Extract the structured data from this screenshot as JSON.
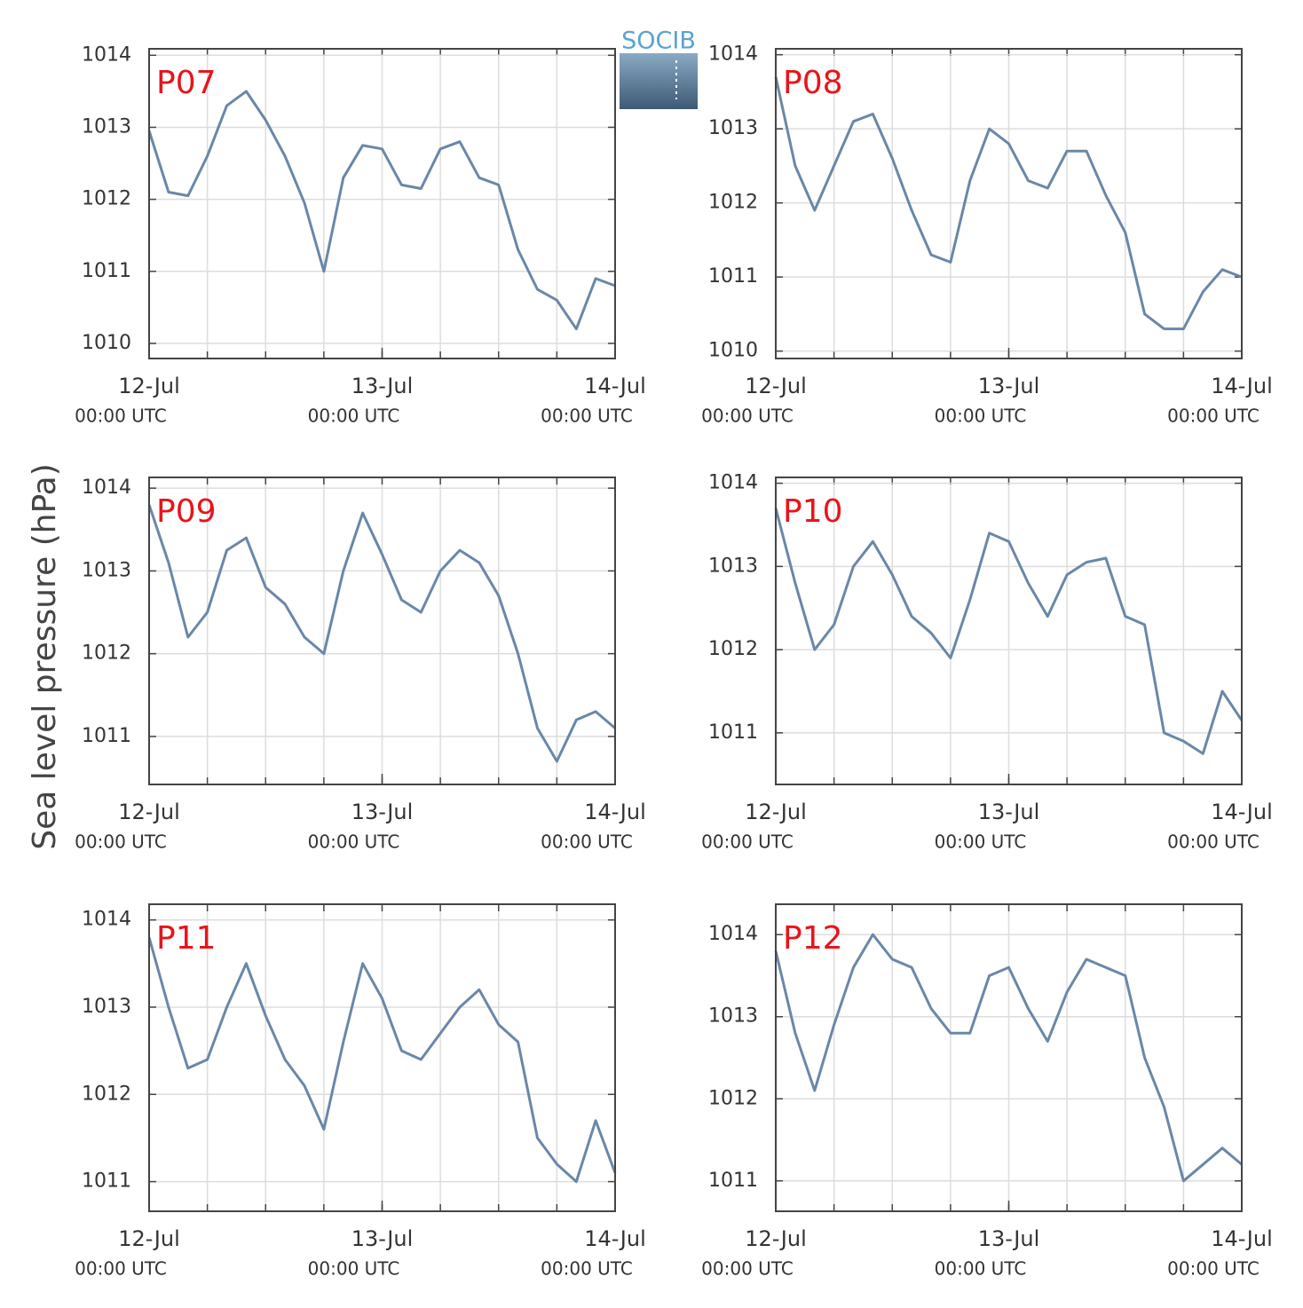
{
  "logo": "SOCIB",
  "ylabel": "Sea level pressure (hPa)",
  "chart_data": [
    {
      "type": "line",
      "title": "P07",
      "color": "#6a87a8",
      "x": [
        "12-Jul 00:00",
        "12-Jul 02:00",
        "12-Jul 04:00",
        "12-Jul 06:00",
        "12-Jul 08:00",
        "12-Jul 10:00",
        "12-Jul 12:00",
        "12-Jul 14:00",
        "12-Jul 16:00",
        "12-Jul 18:00",
        "12-Jul 20:00",
        "12-Jul 22:00",
        "13-Jul 00:00",
        "13-Jul 02:00",
        "13-Jul 04:00",
        "13-Jul 06:00",
        "13-Jul 08:00",
        "13-Jul 10:00",
        "13-Jul 12:00",
        "13-Jul 14:00",
        "13-Jul 16:00",
        "13-Jul 18:00",
        "13-Jul 20:00",
        "13-Jul 22:00",
        "14-Jul 00:00"
      ],
      "values": [
        1012.95,
        1012.1,
        1012.05,
        1012.6,
        1013.3,
        1013.5,
        1013.1,
        1012.6,
        1011.95,
        1011.0,
        1012.3,
        1012.75,
        1012.7,
        1012.2,
        1012.15,
        1012.7,
        1012.8,
        1012.3,
        1012.2,
        1011.3,
        1010.75,
        1010.6,
        1010.2,
        1010.9,
        1010.8
      ],
      "ylim": [
        1009.79,
        1014.09
      ],
      "yticks": [
        1010,
        1011,
        1012,
        1013,
        1014
      ],
      "xticks": [
        {
          "value": "12-Jul 00:00",
          "label": "12-Jul",
          "time": "00:00 UTC"
        },
        {
          "value": "13-Jul 00:00",
          "label": "13-Jul",
          "time": "00:00 UTC"
        },
        {
          "value": "14-Jul 00:00",
          "label": "14-Jul",
          "time": "00:00 UTC"
        }
      ],
      "xminorticks": [
        "12-Jul 00:00",
        "12-Jul 06:00",
        "12-Jul 12:00",
        "12-Jul 18:00",
        "13-Jul 00:00",
        "13-Jul 06:00",
        "13-Jul 12:00",
        "13-Jul 18:00",
        "14-Jul 00:00"
      ],
      "grid": true
    },
    {
      "type": "line",
      "title": "P08",
      "color": "#6a87a8",
      "x": [
        "12-Jul 00:00",
        "12-Jul 02:00",
        "12-Jul 04:00",
        "12-Jul 06:00",
        "12-Jul 08:00",
        "12-Jul 10:00",
        "12-Jul 12:00",
        "12-Jul 14:00",
        "12-Jul 16:00",
        "12-Jul 18:00",
        "12-Jul 20:00",
        "12-Jul 22:00",
        "13-Jul 00:00",
        "13-Jul 02:00",
        "13-Jul 04:00",
        "13-Jul 06:00",
        "13-Jul 08:00",
        "13-Jul 10:00",
        "13-Jul 12:00",
        "13-Jul 14:00",
        "13-Jul 16:00",
        "13-Jul 18:00",
        "13-Jul 20:00",
        "13-Jul 22:00",
        "14-Jul 00:00"
      ],
      "values": [
        1013.7,
        1012.5,
        1011.9,
        1012.5,
        1013.1,
        1013.2,
        1012.6,
        1011.9,
        1011.3,
        1011.2,
        1012.3,
        1013.0,
        1012.8,
        1012.3,
        1012.2,
        1012.7,
        1012.7,
        1012.1,
        1011.6,
        1010.5,
        1010.3,
        1010.3,
        1010.8,
        1011.1,
        1011.0
      ],
      "ylim": [
        1009.9,
        1014.08
      ],
      "yticks": [
        1010,
        1011,
        1012,
        1013,
        1014
      ],
      "xticks": [
        {
          "value": "12-Jul 00:00",
          "label": "12-Jul",
          "time": "00:00 UTC"
        },
        {
          "value": "13-Jul 00:00",
          "label": "13-Jul",
          "time": "00:00 UTC"
        },
        {
          "value": "14-Jul 00:00",
          "label": "14-Jul",
          "time": "00:00 UTC"
        }
      ],
      "xminorticks": [
        "12-Jul 00:00",
        "12-Jul 06:00",
        "12-Jul 12:00",
        "12-Jul 18:00",
        "13-Jul 00:00",
        "13-Jul 06:00",
        "13-Jul 12:00",
        "13-Jul 18:00",
        "14-Jul 00:00"
      ],
      "grid": true
    },
    {
      "type": "line",
      "title": "P09",
      "color": "#6a87a8",
      "x": [
        "12-Jul 00:00",
        "12-Jul 02:00",
        "12-Jul 04:00",
        "12-Jul 06:00",
        "12-Jul 08:00",
        "12-Jul 10:00",
        "12-Jul 12:00",
        "12-Jul 14:00",
        "12-Jul 16:00",
        "12-Jul 18:00",
        "12-Jul 20:00",
        "12-Jul 22:00",
        "13-Jul 00:00",
        "13-Jul 02:00",
        "13-Jul 04:00",
        "13-Jul 06:00",
        "13-Jul 08:00",
        "13-Jul 10:00",
        "13-Jul 12:00",
        "13-Jul 14:00",
        "13-Jul 16:00",
        "13-Jul 18:00",
        "13-Jul 20:00",
        "13-Jul 22:00",
        "14-Jul 00:00"
      ],
      "values": [
        1013.8,
        1013.1,
        1012.2,
        1012.5,
        1013.25,
        1013.4,
        1012.8,
        1012.6,
        1012.2,
        1012.0,
        1013.0,
        1013.7,
        1013.2,
        1012.65,
        1012.5,
        1013.0,
        1013.25,
        1013.1,
        1012.7,
        1012.0,
        1011.1,
        1010.7,
        1011.2,
        1011.3,
        1011.1
      ],
      "ylim": [
        1010.42,
        1014.13
      ],
      "yticks": [
        1011,
        1012,
        1013,
        1014
      ],
      "xticks": [
        {
          "value": "12-Jul 00:00",
          "label": "12-Jul",
          "time": "00:00 UTC"
        },
        {
          "value": "13-Jul 00:00",
          "label": "13-Jul",
          "time": "00:00 UTC"
        },
        {
          "value": "14-Jul 00:00",
          "label": "14-Jul",
          "time": "00:00 UTC"
        }
      ],
      "xminorticks": [
        "12-Jul 00:00",
        "12-Jul 06:00",
        "12-Jul 12:00",
        "12-Jul 18:00",
        "13-Jul 00:00",
        "13-Jul 06:00",
        "13-Jul 12:00",
        "13-Jul 18:00",
        "14-Jul 00:00"
      ],
      "grid": true
    },
    {
      "type": "line",
      "title": "P10",
      "color": "#6a87a8",
      "x": [
        "12-Jul 00:00",
        "12-Jul 02:00",
        "12-Jul 04:00",
        "12-Jul 06:00",
        "12-Jul 08:00",
        "12-Jul 10:00",
        "12-Jul 12:00",
        "12-Jul 14:00",
        "12-Jul 16:00",
        "12-Jul 18:00",
        "12-Jul 20:00",
        "12-Jul 22:00",
        "13-Jul 00:00",
        "13-Jul 02:00",
        "13-Jul 04:00",
        "13-Jul 06:00",
        "13-Jul 08:00",
        "13-Jul 10:00",
        "13-Jul 12:00",
        "13-Jul 14:00",
        "13-Jul 16:00",
        "13-Jul 18:00",
        "13-Jul 20:00",
        "13-Jul 22:00",
        "14-Jul 00:00"
      ],
      "values": [
        1013.7,
        1012.8,
        1012.0,
        1012.3,
        1013.0,
        1013.3,
        1012.9,
        1012.4,
        1012.2,
        1011.9,
        1012.6,
        1013.4,
        1013.3,
        1012.8,
        1012.4,
        1012.9,
        1013.05,
        1013.1,
        1012.4,
        1012.3,
        1011.0,
        1010.9,
        1010.75,
        1011.5,
        1011.15
      ],
      "ylim": [
        1010.38,
        1014.07
      ],
      "yticks": [
        1011,
        1012,
        1013,
        1014
      ],
      "xticks": [
        {
          "value": "12-Jul 00:00",
          "label": "12-Jul",
          "time": "00:00 UTC"
        },
        {
          "value": "13-Jul 00:00",
          "label": "13-Jul",
          "time": "00:00 UTC"
        },
        {
          "value": "14-Jul 00:00",
          "label": "14-Jul",
          "time": "00:00 UTC"
        }
      ],
      "xminorticks": [
        "12-Jul 00:00",
        "12-Jul 06:00",
        "12-Jul 12:00",
        "12-Jul 18:00",
        "13-Jul 00:00",
        "13-Jul 06:00",
        "13-Jul 12:00",
        "13-Jul 18:00",
        "14-Jul 00:00"
      ],
      "grid": true
    },
    {
      "type": "line",
      "title": "P11",
      "color": "#6a87a8",
      "x": [
        "12-Jul 00:00",
        "12-Jul 02:00",
        "12-Jul 04:00",
        "12-Jul 06:00",
        "12-Jul 08:00",
        "12-Jul 10:00",
        "12-Jul 12:00",
        "12-Jul 14:00",
        "12-Jul 16:00",
        "12-Jul 18:00",
        "12-Jul 20:00",
        "12-Jul 22:00",
        "13-Jul 00:00",
        "13-Jul 02:00",
        "13-Jul 04:00",
        "13-Jul 06:00",
        "13-Jul 08:00",
        "13-Jul 10:00",
        "13-Jul 12:00",
        "13-Jul 14:00",
        "13-Jul 16:00",
        "13-Jul 18:00",
        "13-Jul 20:00",
        "13-Jul 22:00",
        "14-Jul 00:00"
      ],
      "values": [
        1013.8,
        1013.0,
        1012.3,
        1012.4,
        1013.0,
        1013.5,
        1012.9,
        1012.4,
        1012.1,
        1011.6,
        1012.6,
        1013.5,
        1013.1,
        1012.5,
        1012.4,
        1012.7,
        1013.0,
        1013.2,
        1012.8,
        1012.6,
        1011.5,
        1011.2,
        1011.0,
        1011.7,
        1011.1
      ],
      "ylim": [
        1010.66,
        1014.18
      ],
      "yticks": [
        1011,
        1012,
        1013,
        1014
      ],
      "xticks": [
        {
          "value": "12-Jul 00:00",
          "label": "12-Jul",
          "time": "00:00 UTC"
        },
        {
          "value": "13-Jul 00:00",
          "label": "13-Jul",
          "time": "00:00 UTC"
        },
        {
          "value": "14-Jul 00:00",
          "label": "14-Jul",
          "time": "00:00 UTC"
        }
      ],
      "xminorticks": [
        "12-Jul 00:00",
        "12-Jul 06:00",
        "12-Jul 12:00",
        "12-Jul 18:00",
        "13-Jul 00:00",
        "13-Jul 06:00",
        "13-Jul 12:00",
        "13-Jul 18:00",
        "14-Jul 00:00"
      ],
      "grid": true
    },
    {
      "type": "line",
      "title": "P12",
      "color": "#6a87a8",
      "x": [
        "12-Jul 00:00",
        "12-Jul 02:00",
        "12-Jul 04:00",
        "12-Jul 06:00",
        "12-Jul 08:00",
        "12-Jul 10:00",
        "12-Jul 12:00",
        "12-Jul 14:00",
        "12-Jul 16:00",
        "12-Jul 18:00",
        "12-Jul 20:00",
        "12-Jul 22:00",
        "13-Jul 00:00",
        "13-Jul 02:00",
        "13-Jul 04:00",
        "13-Jul 06:00",
        "13-Jul 08:00",
        "13-Jul 10:00",
        "13-Jul 12:00",
        "13-Jul 14:00",
        "13-Jul 16:00",
        "13-Jul 18:00",
        "13-Jul 20:00",
        "13-Jul 22:00",
        "14-Jul 00:00"
      ],
      "values": [
        1013.8,
        1012.8,
        1012.1,
        1012.9,
        1013.6,
        1014.0,
        1013.7,
        1013.6,
        1013.1,
        1012.8,
        1012.8,
        1013.5,
        1013.6,
        1013.1,
        1012.7,
        1013.3,
        1013.7,
        1013.6,
        1013.5,
        1012.5,
        1011.9,
        1011.0,
        1011.2,
        1011.4,
        1011.2
      ],
      "ylim": [
        1010.63,
        1014.37
      ],
      "yticks": [
        1011,
        1012,
        1013,
        1014
      ],
      "xticks": [
        {
          "value": "12-Jul 00:00",
          "label": "12-Jul",
          "time": "00:00 UTC"
        },
        {
          "value": "13-Jul 00:00",
          "label": "13-Jul",
          "time": "00:00 UTC"
        },
        {
          "value": "14-Jul 00:00",
          "label": "14-Jul",
          "time": "00:00 UTC"
        }
      ],
      "xminorticks": [
        "12-Jul 00:00",
        "12-Jul 06:00",
        "12-Jul 12:00",
        "12-Jul 18:00",
        "13-Jul 00:00",
        "13-Jul 06:00",
        "13-Jul 12:00",
        "13-Jul 18:00",
        "14-Jul 00:00"
      ],
      "grid": true
    }
  ]
}
